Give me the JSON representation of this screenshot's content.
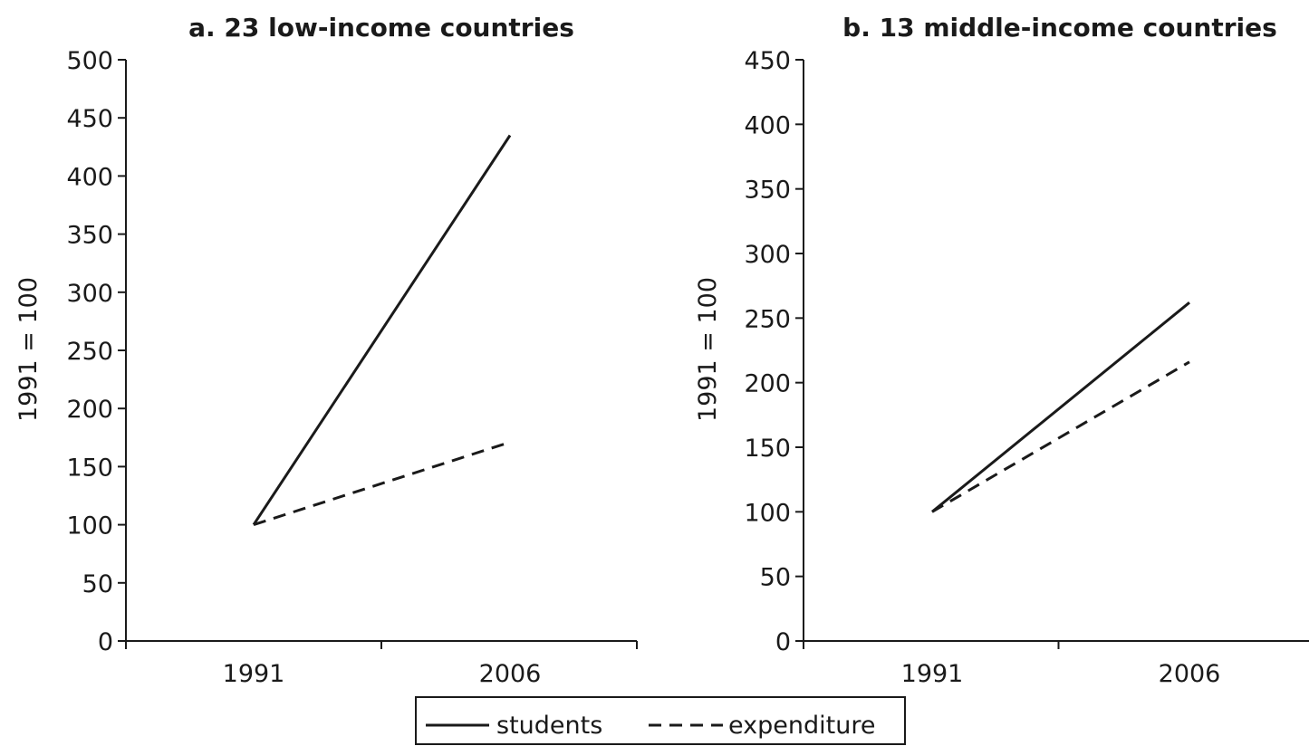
{
  "chart_data": [
    {
      "type": "line",
      "title": "a. 23 low-income countries",
      "ylabel": "1991 = 100",
      "xlabel": "",
      "categories": [
        "1991",
        "2006"
      ],
      "ylim": [
        0,
        500
      ],
      "yticks": [
        0,
        50,
        100,
        150,
        200,
        250,
        300,
        350,
        400,
        450,
        500
      ],
      "series": [
        {
          "name": "students",
          "style": "solid",
          "values": [
            100,
            435
          ]
        },
        {
          "name": "expenditure",
          "style": "dashed",
          "values": [
            100,
            171
          ]
        }
      ]
    },
    {
      "type": "line",
      "title": "b. 13 middle-income countries",
      "ylabel": "1991 = 100",
      "xlabel": "",
      "categories": [
        "1991",
        "2006"
      ],
      "ylim": [
        0,
        450
      ],
      "yticks": [
        0,
        50,
        100,
        150,
        200,
        250,
        300,
        350,
        400,
        450
      ],
      "series": [
        {
          "name": "students",
          "style": "solid",
          "values": [
            100,
            262
          ]
        },
        {
          "name": "expenditure",
          "style": "dashed",
          "values": [
            100,
            216
          ]
        }
      ]
    }
  ],
  "legend": {
    "placement": "bottom-center",
    "items": [
      {
        "label": "students",
        "style": "solid"
      },
      {
        "label": "expenditure",
        "style": "dashed"
      }
    ]
  },
  "colors": {
    "ink": "#1a1a1a"
  }
}
